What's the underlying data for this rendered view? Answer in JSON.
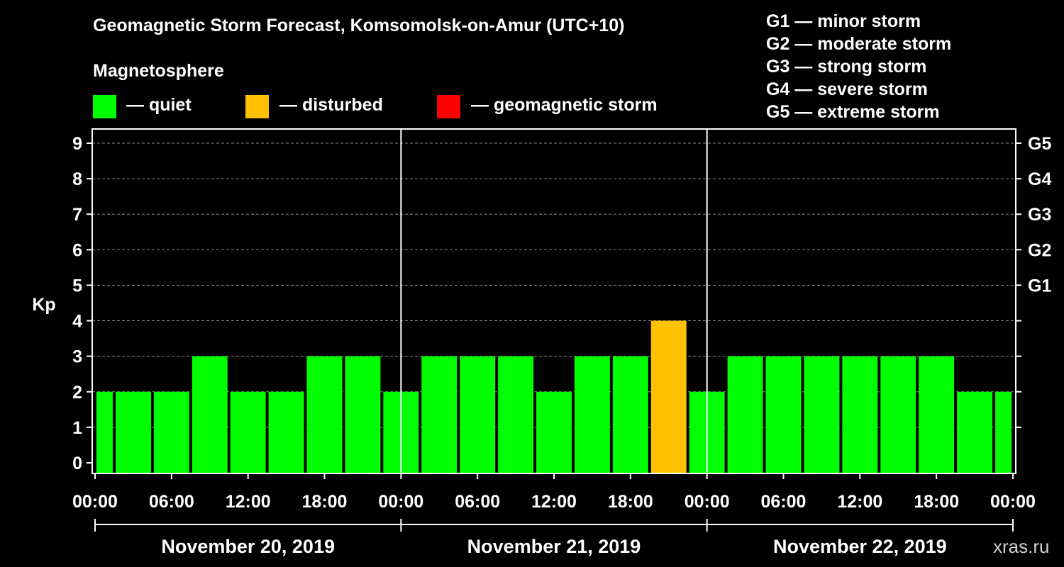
{
  "title": "Geomagnetic Storm Forecast, Komsomolsk-on-Amur (UTC+10)",
  "legend": {
    "heading": "Magnetosphere",
    "items": [
      {
        "label": "— quiet",
        "color": "#00ff00"
      },
      {
        "label": "— disturbed",
        "color": "#ffc000"
      },
      {
        "label": "— geomagnetic storm",
        "color": "#ff0000"
      }
    ]
  },
  "g_scale": [
    "G1 — minor storm",
    "G2 — moderate storm",
    "G3 — strong storm",
    "G4 — severe storm",
    "G5 — extreme storm"
  ],
  "credit": "xras.ru",
  "chart_data": {
    "type": "bar",
    "ylabel": "Kp",
    "ylim": [
      0,
      9
    ],
    "yticks": [
      0,
      1,
      2,
      3,
      4,
      5,
      6,
      7,
      8,
      9
    ],
    "right_axis": [
      {
        "kp": 5,
        "label": "G1"
      },
      {
        "kp": 6,
        "label": "G2"
      },
      {
        "kp": 7,
        "label": "G3"
      },
      {
        "kp": 8,
        "label": "G4"
      },
      {
        "kp": 9,
        "label": "G5"
      }
    ],
    "xtick_labels": [
      "00:00",
      "06:00",
      "12:00",
      "18:00",
      "00:00",
      "06:00",
      "12:00",
      "18:00",
      "00:00",
      "06:00",
      "12:00",
      "18:00",
      "00:00"
    ],
    "days": [
      "November 20, 2019",
      "November 21, 2019",
      "November 22, 2019"
    ],
    "interval_hours": 3,
    "values": [
      2,
      2,
      2,
      3,
      2,
      2,
      3,
      3,
      2,
      3,
      3,
      3,
      2,
      3,
      3,
      4,
      2,
      3,
      3,
      3,
      3,
      3,
      3,
      2,
      2
    ],
    "grid": true
  }
}
